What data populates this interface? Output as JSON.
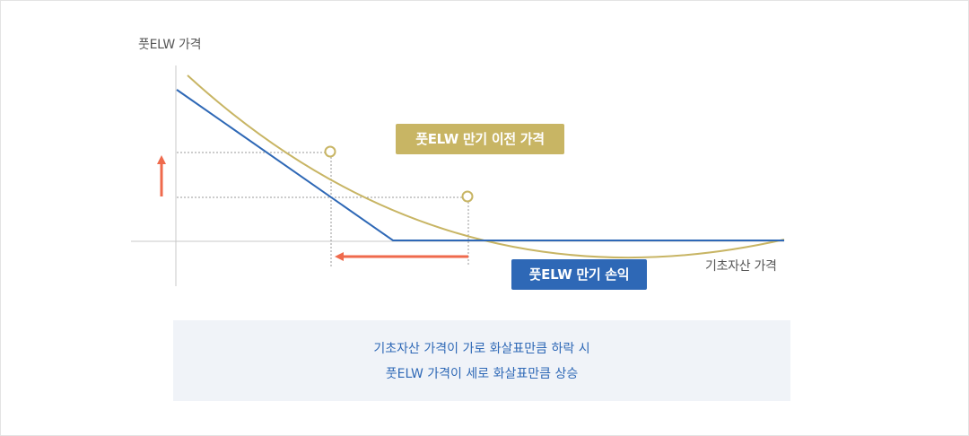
{
  "chart": {
    "y_axis_label": "풋ELW 가격",
    "x_axis_label": "기초자산 가격",
    "curve_before_expiry_label": "풋ELW 만기 이전 가격",
    "payoff_at_expiry_label": "풋ELW 만기 손익"
  },
  "note": {
    "line1": "기초자산 가격이 가로 화살표만큼 하락 시",
    "line2": "풋ELW 가격이 세로 화살표만큼 상승"
  },
  "colors": {
    "curve_gold": "#c8b564",
    "payoff_blue": "#2e68b6",
    "arrow_red": "#ef6a4c",
    "axis_gray": "#c8c8c8",
    "guide_gray": "#999999",
    "note_text": "#2e68b6",
    "note_bg": "#f0f3f8"
  }
}
